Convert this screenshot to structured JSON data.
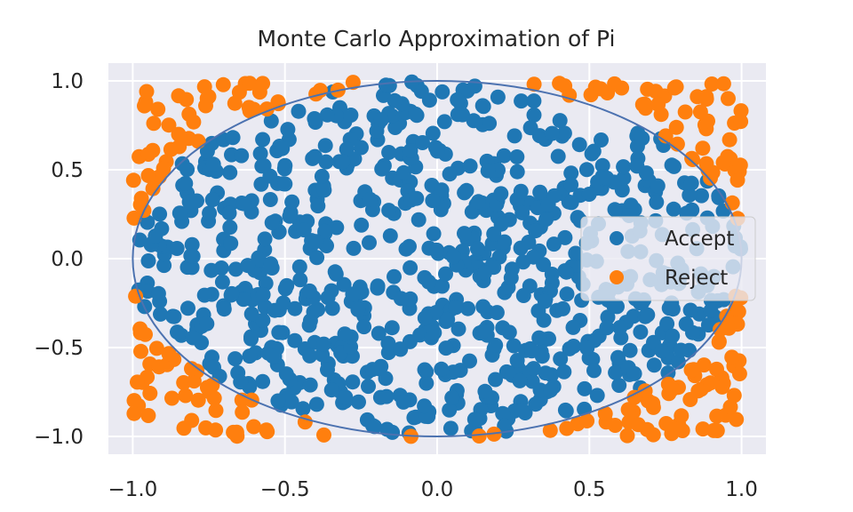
{
  "chart_data": {
    "type": "scatter",
    "title": "Monte Carlo Approximation of Pi",
    "xlabel": "",
    "ylabel": "",
    "xlim": [
      -1.08,
      1.08
    ],
    "ylim": [
      -1.1,
      1.1
    ],
    "x_ticks": [
      -1.0,
      -0.5,
      0.0,
      0.5,
      1.0
    ],
    "x_tick_labels": [
      "−1.0",
      "−0.5",
      "0.0",
      "0.5",
      "1.0"
    ],
    "y_ticks": [
      -1.0,
      -0.5,
      0.0,
      0.5,
      1.0
    ],
    "y_tick_labels": [
      "−1.0",
      "−0.5",
      "0.0",
      "0.5",
      "1.0"
    ],
    "grid": true,
    "background": "#eaeaf2",
    "grid_color": "#ffffff",
    "unit_circle": {
      "center": [
        0,
        0
      ],
      "radius": 1,
      "color": "#4c72b0"
    },
    "legend": {
      "placement": "center-right"
    },
    "series": [
      {
        "name": "Accept",
        "color": "#1f77b4",
        "count": 785
      },
      {
        "name": "Reject",
        "color": "#ff7f0e",
        "count": 215
      }
    ],
    "n_samples": 1000,
    "sampling": "uniform on [-1, 1] x [-1, 1]; Accept if x^2 + y^2 <= 1, otherwise Reject"
  }
}
